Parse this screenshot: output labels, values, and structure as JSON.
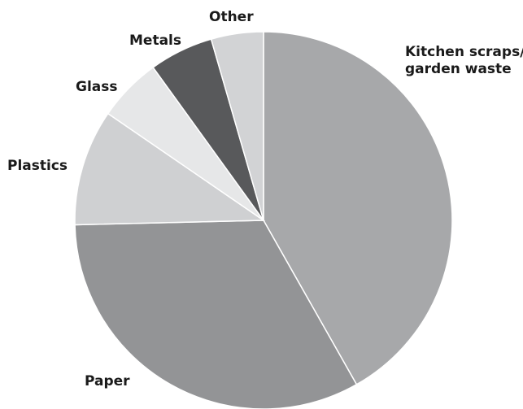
{
  "chart_data": {
    "type": "pie",
    "title": "",
    "start": "top",
    "direction": "clockwise",
    "slices": [
      {
        "label": "Kitchen scraps/ garden waste",
        "label_lines": [
          "Kitchen scraps/",
          "garden waste"
        ],
        "value": 42,
        "color": "#a7a8aa"
      },
      {
        "label": "Paper",
        "label_lines": [
          "Paper"
        ],
        "value": 33,
        "color": "#939496"
      },
      {
        "label": "Plastics",
        "label_lines": [
          "Plastics"
        ],
        "value": 10,
        "color": "#cfd0d2"
      },
      {
        "label": "Glass",
        "label_lines": [
          "Glass"
        ],
        "value": 5.5,
        "color": "#e6e7e8"
      },
      {
        "label": "Metals",
        "label_lines": [
          "Metals"
        ],
        "value": 5.5,
        "color": "#58595b"
      },
      {
        "label": "Other",
        "label_lines": [
          "Other"
        ],
        "value": 4.5,
        "color": "#d2d3d5"
      }
    ]
  }
}
